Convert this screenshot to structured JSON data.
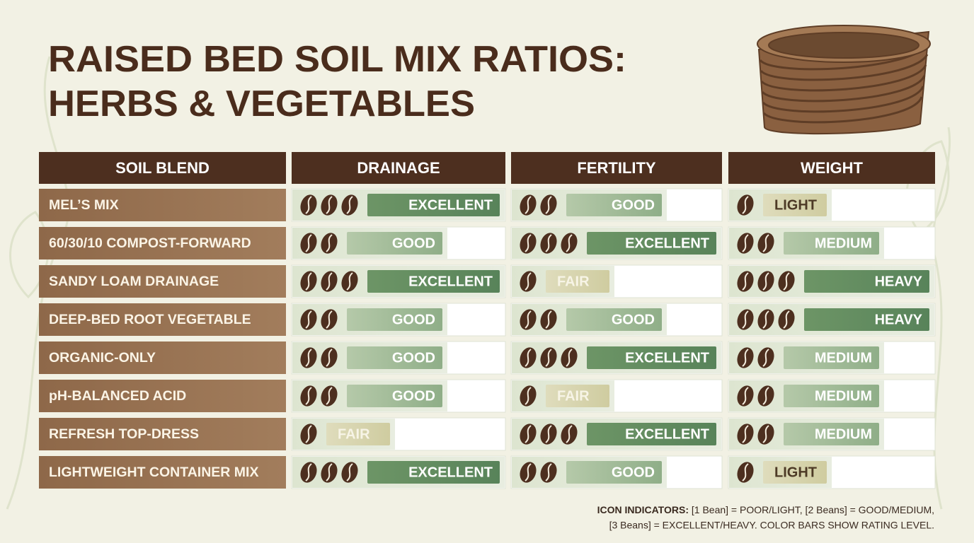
{
  "title_lines": [
    "RAISED BED SOIL MIX RATIOS:",
    "HERBS & VEGETABLES"
  ],
  "table": {
    "columns": [
      "SOIL BLEND",
      "DRAINAGE",
      "FERTILITY",
      "WEIGHT"
    ],
    "rows": [
      {
        "name": "MEL’S MIX",
        "cells": [
          {
            "label": "EXCELLENT",
            "beans": 3
          },
          {
            "label": "GOOD",
            "beans": 2
          },
          {
            "label": "LIGHT",
            "beans": 1
          }
        ]
      },
      {
        "name": "60/30/10 COMPOST-FORWARD",
        "cells": [
          {
            "label": "GOOD",
            "beans": 2
          },
          {
            "label": "EXCELLENT",
            "beans": 3
          },
          {
            "label": "MEDIUM",
            "beans": 2
          }
        ]
      },
      {
        "name": "SANDY LOAM DRAINAGE",
        "cells": [
          {
            "label": "EXCELLENT",
            "beans": 3
          },
          {
            "label": "FAIR",
            "beans": 1
          },
          {
            "label": "HEAVY",
            "beans": 3
          }
        ]
      },
      {
        "name": "DEEP-BED ROOT VEGETABLE",
        "cells": [
          {
            "label": "GOOD",
            "beans": 2
          },
          {
            "label": "GOOD",
            "beans": 2
          },
          {
            "label": "HEAVY",
            "beans": 3
          }
        ]
      },
      {
        "name": "ORGANIC-ONLY",
        "cells": [
          {
            "label": "GOOD",
            "beans": 2
          },
          {
            "label": "EXCELLENT",
            "beans": 3
          },
          {
            "label": "MEDIUM",
            "beans": 2
          }
        ]
      },
      {
        "name": "pH-BALANCED ACID",
        "cells": [
          {
            "label": "GOOD",
            "beans": 2
          },
          {
            "label": "FAIR",
            "beans": 1
          },
          {
            "label": "MEDIUM",
            "beans": 2
          }
        ]
      },
      {
        "name": "REFRESH TOP-DRESS",
        "cells": [
          {
            "label": "FAIR",
            "beans": 1
          },
          {
            "label": "EXCELLENT",
            "beans": 3
          },
          {
            "label": "MEDIUM",
            "beans": 2
          }
        ]
      },
      {
        "name": "LIGHTWEIGHT CONTAINER MIX",
        "cells": [
          {
            "label": "EXCELLENT",
            "beans": 3
          },
          {
            "label": "GOOD",
            "beans": 2
          },
          {
            "label": "LIGHT",
            "beans": 1
          }
        ]
      }
    ]
  },
  "legend": {
    "label": "ICON INDICATORS:",
    "lines": [
      "[1 Bean] = POOR/LIGHT, [2 Beans] = GOOD/MEDIUM,",
      "[3 Beans] = EXCELLENT/HEAVY. COLOR BARS SHOW RATING LEVEL."
    ]
  }
}
